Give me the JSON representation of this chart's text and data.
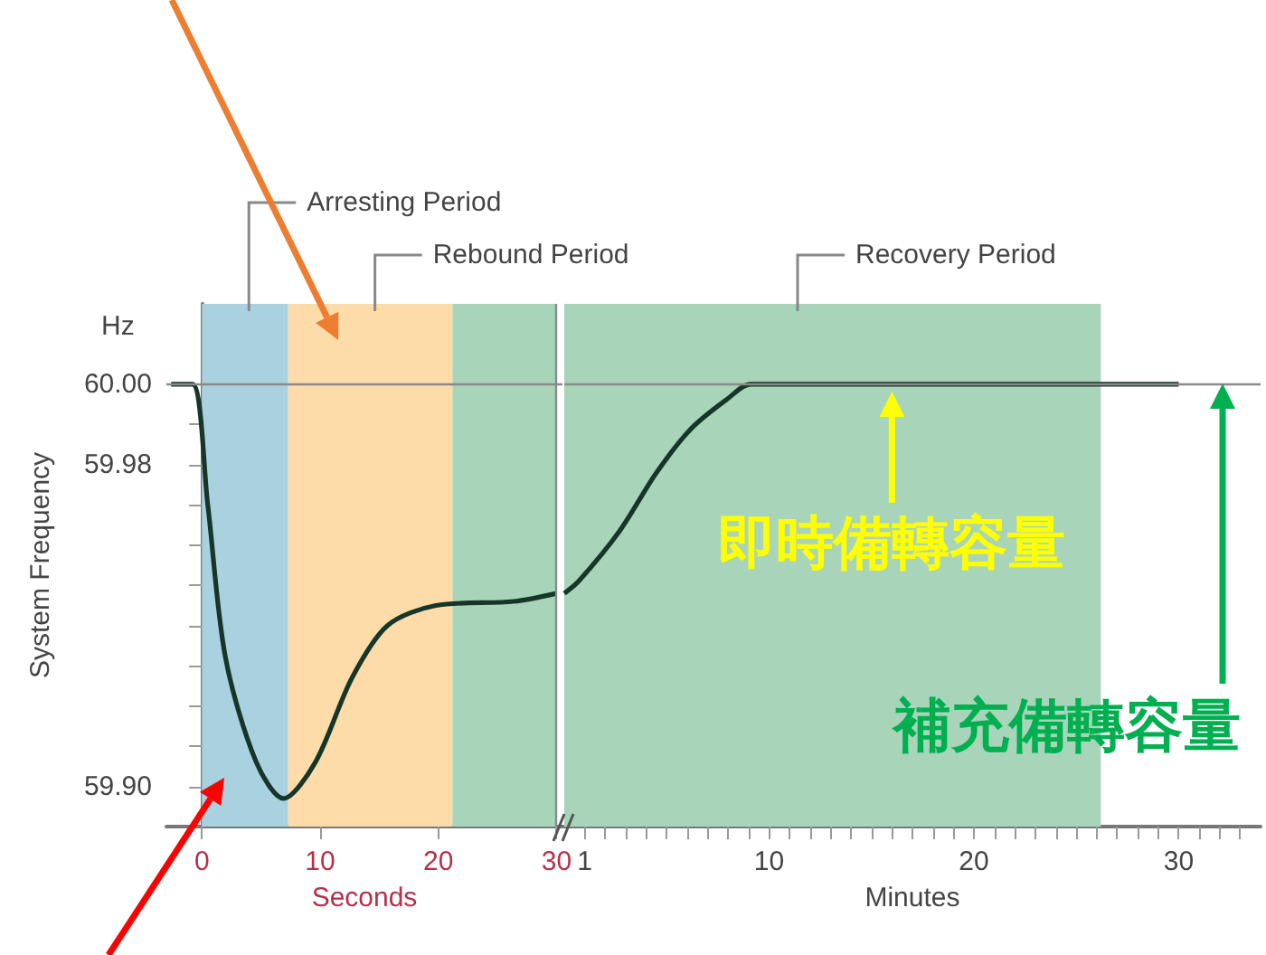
{
  "chart_data": [
    {
      "type": "line",
      "ylabel": "System Frequency",
      "xlabel": "Seconds",
      "annotations": [
        "Hz"
      ],
      "x": [
        -2.6,
        -0.8,
        0.5,
        2.0,
        4.6,
        6.9,
        9.6,
        12.7,
        15.7,
        19.8,
        26.4,
        30
      ],
      "values": [
        60.0,
        60.0,
        59.97,
        59.932,
        59.906,
        59.897,
        59.906,
        59.927,
        59.94,
        59.945,
        59.946,
        59.948
      ],
      "color": "#17362a",
      "xlim": [
        -3,
        30.5
      ],
      "xticks": [
        0,
        10,
        20,
        30
      ],
      "ylim": [
        59.89,
        60.02
      ],
      "yticks": [
        {
          "value": 59.9,
          "label": "59.90"
        },
        {
          "value": 59.91,
          "label": null
        },
        {
          "value": 59.92,
          "label": null
        },
        {
          "value": 59.93,
          "label": null
        },
        {
          "value": 59.94,
          "label": null
        },
        {
          "value": 59.95,
          "label": null
        },
        {
          "value": 59.96,
          "label": null
        },
        {
          "value": 59.97,
          "label": null
        },
        {
          "value": 59.98,
          "label": "59.98"
        },
        {
          "value": 59.99,
          "label": null
        },
        {
          "value": 60.0,
          "label": "60.00"
        }
      ],
      "bands": [
        {
          "axis": "x",
          "from": 0,
          "to": 7.3,
          "label": "Arresting Period",
          "color": "#a9d1df"
        },
        {
          "axis": "x",
          "from": 7.3,
          "to": 21.2,
          "label": "Rebound Period",
          "color": "#fddcaa"
        },
        {
          "axis": "x",
          "from": 21.2,
          "to": 30,
          "label": null,
          "color": "#a8d4b9"
        }
      ],
      "ref_lines": [
        {
          "axis": "y",
          "value": 60.0,
          "label": null
        },
        {
          "axis": "x",
          "value": 30,
          "label": null
        }
      ]
    },
    {
      "type": "line",
      "xlabel": "Minutes",
      "tick_labels": "x",
      "annotations": [
        {
          "text": "即時備轉容量",
          "x": 16,
          "y": 60.0
        },
        "補充備轉容量"
      ],
      "x": [
        0,
        0.7,
        2.7,
        4.5,
        6.2,
        8.0,
        9.1,
        30
      ],
      "values": [
        59.948,
        59.951,
        59.9635,
        59.978,
        59.989,
        59.9965,
        60.0,
        60.0
      ],
      "color": "#17362a",
      "xlim": [
        0,
        34
      ],
      "xticks": [
        {
          "value": 1,
          "label": "1"
        },
        {
          "value": 2,
          "label": null
        },
        {
          "value": 3,
          "label": null
        },
        {
          "value": 4,
          "label": null
        },
        {
          "value": 5,
          "label": null
        },
        {
          "value": 6,
          "label": null
        },
        {
          "value": 7,
          "label": null
        },
        {
          "value": 8,
          "label": null
        },
        {
          "value": 9,
          "label": null
        },
        {
          "value": 10,
          "label": "10"
        },
        {
          "value": 11,
          "label": null
        },
        {
          "value": 12,
          "label": null
        },
        {
          "value": 13,
          "label": null
        },
        {
          "value": 14,
          "label": null
        },
        {
          "value": 15,
          "label": null
        },
        {
          "value": 16,
          "label": null
        },
        {
          "value": 17,
          "label": null
        },
        {
          "value": 18,
          "label": null
        },
        {
          "value": 19,
          "label": null
        },
        {
          "value": 20,
          "label": "20"
        },
        {
          "value": 21,
          "label": null
        },
        {
          "value": 22,
          "label": null
        },
        {
          "value": 23,
          "label": null
        },
        {
          "value": 24,
          "label": null
        },
        {
          "value": 25,
          "label": null
        },
        {
          "value": 26,
          "label": null
        },
        {
          "value": 27,
          "label": null
        },
        {
          "value": 28,
          "label": null
        },
        {
          "value": 29,
          "label": null
        },
        {
          "value": 30,
          "label": "30"
        },
        {
          "value": 31,
          "label": null
        },
        {
          "value": 32,
          "label": null
        },
        {
          "value": 33,
          "label": null
        }
      ],
      "ylim": [
        59.89,
        60.02
      ],
      "bands": [
        {
          "axis": "x",
          "from": 0,
          "to": 26.2,
          "label": "Recovery Period",
          "color": "#a8d4b9"
        }
      ],
      "ref_lines": [
        {
          "axis": "y",
          "value": 60.0,
          "label": null
        }
      ]
    }
  ]
}
